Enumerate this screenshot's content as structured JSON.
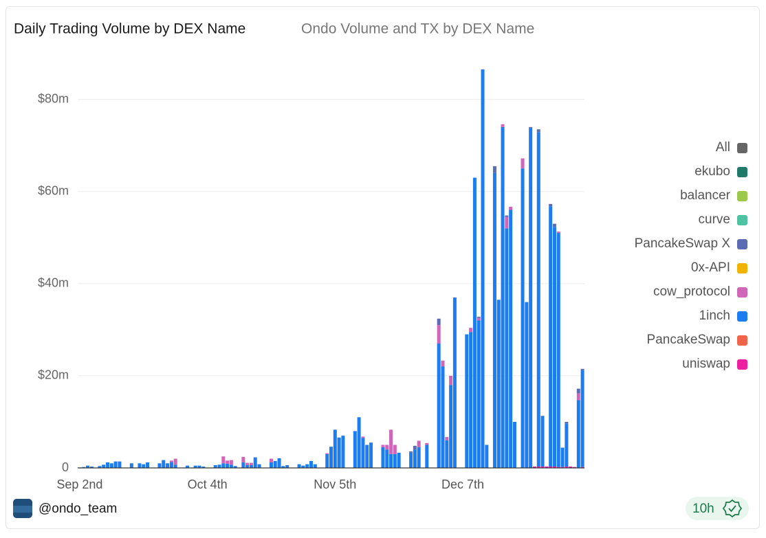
{
  "chart_data": {
    "type": "stacked-bar",
    "title": "Daily Trading Volume by DEX Name",
    "subtitle": "Ondo Volume and TX by DEX Name",
    "categories": [
      "Sep 2nd",
      null,
      null,
      null,
      null,
      null,
      null,
      null,
      null,
      null,
      null,
      null,
      null,
      null,
      null,
      null,
      null,
      null,
      null,
      null,
      null,
      null,
      null,
      null,
      null,
      null,
      null,
      null,
      null,
      null,
      null,
      null,
      "Oct 4th",
      null,
      null,
      null,
      null,
      null,
      null,
      null,
      null,
      null,
      null,
      null,
      null,
      null,
      null,
      null,
      null,
      null,
      null,
      null,
      null,
      null,
      null,
      null,
      null,
      null,
      null,
      null,
      null,
      null,
      null,
      null,
      "Nov 5th",
      null,
      null,
      null,
      null,
      null,
      null,
      null,
      null,
      null,
      null,
      null,
      null,
      null,
      null,
      null,
      null,
      null,
      null,
      null,
      null,
      null,
      null,
      null,
      null,
      null,
      null,
      null,
      null,
      null,
      null,
      null,
      "Dec 7th",
      null,
      null,
      null,
      null,
      null,
      null,
      null,
      null,
      null,
      null,
      null,
      null,
      null,
      null,
      null,
      null,
      null,
      null,
      null,
      null,
      null,
      null,
      null,
      null,
      null,
      null,
      null,
      null,
      null,
      null
    ],
    "series": [
      {
        "name": "All",
        "color": "#666666",
        "values": [
          0,
          0,
          0,
          0,
          0,
          0,
          0,
          0,
          0,
          0,
          0,
          0,
          0,
          0,
          0,
          0,
          0,
          0,
          0,
          0,
          0,
          0,
          0,
          0,
          0,
          0,
          0,
          0,
          0,
          0,
          0,
          0,
          0,
          0,
          0,
          0,
          0,
          0,
          0,
          0,
          0,
          0,
          0,
          0,
          0,
          0,
          0,
          0,
          0,
          0,
          0,
          0,
          0,
          0,
          0,
          0,
          0,
          0,
          0,
          0,
          0,
          0,
          0,
          0,
          0,
          0,
          0,
          0,
          0,
          0,
          0,
          0,
          0,
          0,
          0,
          0,
          0,
          0,
          0,
          0,
          0,
          0,
          0,
          0,
          0,
          0,
          0,
          0,
          0,
          0,
          0,
          0,
          0,
          0,
          0,
          0,
          0,
          0,
          0,
          0,
          0,
          0,
          0,
          0,
          0,
          0,
          0,
          0,
          0,
          0,
          0,
          0,
          0,
          0,
          0,
          0,
          0,
          0,
          0,
          0,
          0,
          0,
          0,
          0,
          0,
          0,
          0
        ]
      },
      {
        "name": "ekubo",
        "color": "#1f7a6a",
        "values": [
          0,
          0,
          0,
          0,
          0,
          0,
          0,
          0,
          0,
          0,
          0,
          0,
          0,
          0,
          0,
          0,
          0,
          0,
          0,
          0,
          0,
          0,
          0,
          0,
          0,
          0,
          0,
          0,
          0,
          0,
          0,
          0,
          0,
          0,
          0,
          0,
          0,
          0,
          0,
          0,
          0,
          0,
          0,
          0,
          0,
          0,
          0,
          0,
          0,
          0,
          0,
          0,
          0,
          0,
          0,
          0,
          0,
          0,
          0,
          0,
          0,
          0,
          0,
          0,
          0,
          0,
          0,
          0,
          0,
          0,
          0,
          0,
          0,
          0,
          0,
          0,
          0,
          0,
          0,
          0,
          0,
          0,
          0,
          0,
          0,
          0,
          0,
          0,
          0,
          0,
          0,
          0,
          0,
          0,
          0,
          0,
          0,
          0,
          0,
          0,
          0,
          0,
          0,
          0,
          0,
          0,
          0,
          0,
          0,
          0,
          0,
          0,
          0,
          0,
          0,
          0,
          0,
          0,
          0,
          0,
          0,
          0,
          0,
          0,
          0,
          0,
          0
        ]
      },
      {
        "name": "balancer",
        "color": "#9cc94a",
        "values": [
          0,
          0,
          0,
          0,
          0,
          0,
          0,
          0,
          0,
          0,
          0,
          0,
          0,
          0,
          0,
          0,
          0,
          0,
          0,
          0,
          0,
          0,
          0,
          0,
          0,
          0,
          0,
          0,
          0,
          0,
          0,
          0,
          0,
          0,
          0,
          0,
          0,
          0,
          0,
          0,
          0,
          0,
          0,
          0,
          0,
          0,
          0,
          0,
          0,
          0,
          0,
          0,
          0,
          0,
          0,
          0,
          0,
          0,
          0,
          0,
          0,
          0,
          0,
          0,
          0,
          0,
          0,
          0,
          0,
          0,
          0,
          0,
          0,
          0,
          0,
          0,
          0,
          0,
          0,
          0,
          0,
          0,
          0,
          0,
          0,
          0,
          0,
          0,
          0,
          0,
          0,
          0,
          0,
          0,
          0,
          0,
          0,
          0,
          0,
          0,
          0,
          0,
          0,
          0,
          0,
          0,
          0,
          0,
          0,
          0,
          0,
          0,
          0,
          0,
          0,
          0,
          0,
          0,
          0,
          0,
          0,
          0,
          0,
          0,
          0,
          0,
          0
        ]
      },
      {
        "name": "curve",
        "color": "#4fc3a1",
        "values": [
          0,
          0,
          0,
          0,
          0,
          0,
          0,
          0,
          0,
          0,
          0,
          0,
          0,
          0,
          0,
          0,
          0,
          0,
          0,
          0,
          0,
          0,
          0,
          0,
          0,
          0,
          0,
          0,
          0,
          0,
          0,
          0,
          0,
          0,
          0,
          0,
          0,
          0,
          0,
          0,
          0,
          0,
          0,
          0,
          0,
          0,
          0,
          0,
          0,
          0,
          0,
          0,
          0,
          0,
          0,
          0,
          0,
          0,
          0,
          0,
          0,
          0,
          0,
          0,
          0,
          0,
          0,
          0,
          0,
          0,
          0,
          0,
          0,
          0,
          0,
          0,
          0,
          0,
          0,
          0,
          0,
          0,
          0,
          0,
          0,
          0,
          0,
          0,
          0,
          0,
          0,
          0,
          0,
          0,
          0,
          0,
          0,
          0,
          0,
          0,
          0,
          0,
          0,
          0,
          0,
          0,
          0,
          0,
          0,
          0,
          0,
          0,
          0,
          0,
          0,
          0,
          0,
          0,
          0,
          0,
          0,
          0,
          0,
          0,
          0,
          0,
          0
        ]
      },
      {
        "name": "PancakeSwap X",
        "color": "#5b6cb5",
        "values": [
          0,
          0,
          0,
          0,
          0,
          0,
          0,
          0,
          0,
          0,
          0,
          0,
          0,
          0,
          0,
          0,
          0,
          0,
          0,
          0,
          0,
          0,
          0,
          0,
          0,
          0,
          0,
          0,
          0,
          0,
          0,
          0,
          0,
          0,
          0,
          0,
          0,
          0,
          0,
          0,
          0,
          0,
          0,
          0,
          0,
          0,
          0,
          0,
          0,
          0,
          0,
          0,
          0,
          0,
          0,
          0,
          0,
          0,
          0,
          0,
          0,
          0,
          0,
          0,
          0,
          0,
          0,
          0,
          0,
          0,
          0,
          0,
          0,
          0,
          0,
          0,
          0,
          0,
          0,
          0,
          0,
          0,
          0,
          0.3,
          0.8,
          0,
          0,
          0,
          0,
          0,
          1.4,
          0,
          0,
          0,
          0,
          0,
          0,
          0,
          0,
          0,
          0.2,
          0,
          0,
          0,
          1.5,
          0,
          0,
          0.3,
          0,
          0,
          0,
          0,
          0,
          0.2,
          0,
          0.6,
          0,
          0,
          0.5,
          0.7,
          0,
          0,
          0.4,
          0,
          0,
          1,
          0.3
        ]
      },
      {
        "name": "0x-API",
        "color": "#f0b400",
        "values": [
          0,
          0,
          0,
          0,
          0,
          0,
          0,
          0,
          0,
          0,
          0,
          0,
          0,
          0,
          0,
          0,
          0,
          0,
          0,
          0,
          0,
          0,
          0,
          0,
          0,
          0,
          0,
          0,
          0,
          0,
          0,
          0,
          0,
          0,
          0,
          0,
          0,
          0,
          0,
          0,
          0,
          0,
          0,
          0,
          0,
          0,
          0,
          0,
          0,
          0,
          0,
          0,
          0,
          0,
          0,
          0,
          0,
          0,
          0,
          0,
          0,
          0,
          0,
          0,
          0,
          0,
          0,
          0,
          0,
          0,
          0,
          0,
          0,
          0,
          0,
          0,
          0,
          0,
          0,
          0,
          0,
          0,
          0,
          0,
          0,
          0,
          0,
          0,
          0,
          0,
          0,
          0,
          0,
          0,
          0,
          0,
          0,
          0,
          0,
          0,
          0,
          0,
          0,
          0,
          0,
          0,
          0,
          0,
          0,
          0,
          0,
          0,
          0,
          0,
          0,
          0,
          0,
          0,
          0,
          0,
          0,
          0,
          0,
          0,
          0,
          0,
          0
        ]
      },
      {
        "name": "cow_protocol",
        "color": "#d066b8",
        "values": [
          0,
          0,
          0,
          0,
          0,
          0,
          0,
          0,
          0,
          0,
          0,
          0,
          0,
          0,
          0,
          0,
          0,
          0,
          0,
          0,
          0,
          0,
          0,
          0.3,
          1.3,
          0,
          0,
          0,
          0,
          0,
          0,
          0,
          0,
          0,
          0,
          0,
          1.5,
          0.7,
          1,
          0,
          0,
          1.2,
          0.5,
          0.5,
          0,
          0,
          0,
          0,
          0.8,
          0,
          0,
          0,
          0,
          0,
          0,
          0,
          0,
          0,
          0,
          0,
          0,
          0,
          0.2,
          0,
          0,
          0,
          0,
          0,
          0,
          0,
          0,
          0.3,
          0,
          0,
          0,
          0,
          0.5,
          1,
          5.3,
          2,
          0,
          0,
          0,
          0,
          0,
          1.4,
          0,
          0.4,
          0,
          0,
          4,
          1.3,
          0.7,
          2,
          0,
          0,
          0,
          0,
          0.9,
          0,
          0.6,
          0,
          0,
          0,
          0,
          0,
          0.6,
          2.5,
          0.7,
          0,
          0,
          2.2,
          0,
          0,
          0,
          0,
          0,
          0,
          0,
          0,
          0.3,
          0,
          0,
          0,
          0,
          1.5,
          0
        ]
      },
      {
        "name": "1inch",
        "color": "#1c7cf0",
        "values": [
          0.1,
          0.2,
          0.5,
          0.3,
          0,
          0.4,
          0.7,
          1.2,
          1,
          1.4,
          1.4,
          0,
          0,
          1,
          0,
          1,
          0.8,
          1.2,
          0,
          0,
          1,
          1.7,
          1,
          1.3,
          0.7,
          0,
          0,
          0.5,
          0,
          0.5,
          0.5,
          0.3,
          0,
          0,
          0.6,
          0.7,
          1,
          0.9,
          0.7,
          0.4,
          0,
          1.2,
          0.6,
          0.6,
          2.3,
          0.8,
          0,
          0,
          1.2,
          1.5,
          2.1,
          0.4,
          0.6,
          0,
          0,
          0.8,
          0.5,
          0.8,
          1.5,
          0.8,
          0,
          0,
          3,
          4.6,
          8.3,
          6.6,
          7,
          0,
          0,
          8,
          11,
          6.5,
          5,
          5.5,
          0,
          0,
          4.5,
          4,
          3,
          3,
          3.3,
          0,
          0,
          3.3,
          4,
          4.5,
          0,
          5,
          0,
          0,
          27,
          22,
          6,
          18,
          37,
          0,
          0,
          29,
          29.5,
          63,
          32,
          86.5,
          5,
          0,
          64,
          36.5,
          74,
          52,
          56,
          10,
          0,
          65,
          36,
          73.8,
          0,
          72.6,
          11,
          0,
          56.5,
          52,
          50.8,
          4.2,
          9.3,
          0,
          0,
          14.7,
          21
        ]
      },
      {
        "name": "PancakeSwap",
        "color": "#f0654a",
        "values": [
          0,
          0,
          0,
          0,
          0,
          0,
          0,
          0,
          0,
          0,
          0,
          0,
          0,
          0,
          0,
          0,
          0,
          0,
          0,
          0,
          0,
          0,
          0,
          0,
          0,
          0,
          0,
          0,
          0,
          0,
          0,
          0,
          0,
          0,
          0,
          0,
          0,
          0,
          0,
          0,
          0,
          0,
          0,
          0,
          0,
          0,
          0,
          0,
          0,
          0,
          0,
          0,
          0,
          0,
          0,
          0,
          0,
          0,
          0,
          0,
          0,
          0,
          0,
          0,
          0,
          0,
          0,
          0,
          0,
          0,
          0,
          0,
          0,
          0,
          0,
          0,
          0,
          0,
          0,
          0,
          0,
          0,
          0,
          0,
          0,
          0,
          0,
          0,
          0,
          0,
          0,
          0,
          0,
          0,
          0,
          0,
          0,
          0,
          0,
          0,
          0,
          0,
          0,
          0,
          0,
          0,
          0,
          0,
          0,
          0,
          0,
          0,
          0,
          0,
          0,
          0,
          0,
          0,
          0,
          0,
          0,
          0,
          0,
          0,
          0,
          0,
          0
        ]
      },
      {
        "name": "uniswap",
        "color": "#ee1fa0",
        "values": [
          0,
          0,
          0,
          0,
          0,
          0,
          0,
          0,
          0,
          0,
          0,
          0,
          0,
          0,
          0,
          0,
          0,
          0,
          0,
          0,
          0,
          0,
          0,
          0,
          0,
          0,
          0,
          0,
          0,
          0,
          0,
          0,
          0,
          0,
          0,
          0,
          0,
          0,
          0,
          0,
          0,
          0,
          0,
          0,
          0,
          0,
          0,
          0,
          0,
          0,
          0,
          0,
          0,
          0,
          0,
          0,
          0,
          0,
          0,
          0,
          0,
          0,
          0,
          0,
          0,
          0,
          0,
          0,
          0,
          0,
          0,
          0,
          0,
          0,
          0,
          0,
          0,
          0,
          0,
          0,
          0,
          0,
          0,
          0,
          0,
          0,
          0,
          0,
          0,
          0,
          0,
          0,
          0,
          0,
          0,
          0,
          0,
          0,
          0,
          0,
          0,
          0,
          0,
          0,
          0,
          0,
          0,
          0,
          0,
          0,
          0,
          0,
          0,
          0,
          0.3,
          0.3,
          0.3,
          0.3,
          0.3,
          0.3,
          0.2,
          0.2,
          0.3,
          0.3,
          0.2,
          0,
          0.2
        ]
      }
    ],
    "ylim": [
      0,
      88
    ],
    "yticks": [
      {
        "value": 0,
        "label": "0"
      },
      {
        "value": 20,
        "label": "$20m"
      },
      {
        "value": 40,
        "label": "$40m"
      },
      {
        "value": 60,
        "label": "$60m"
      },
      {
        "value": 80,
        "label": "$80m"
      }
    ],
    "grid": true,
    "legend": "right"
  },
  "footer": {
    "author": "@ondo_team",
    "age": "10h"
  }
}
